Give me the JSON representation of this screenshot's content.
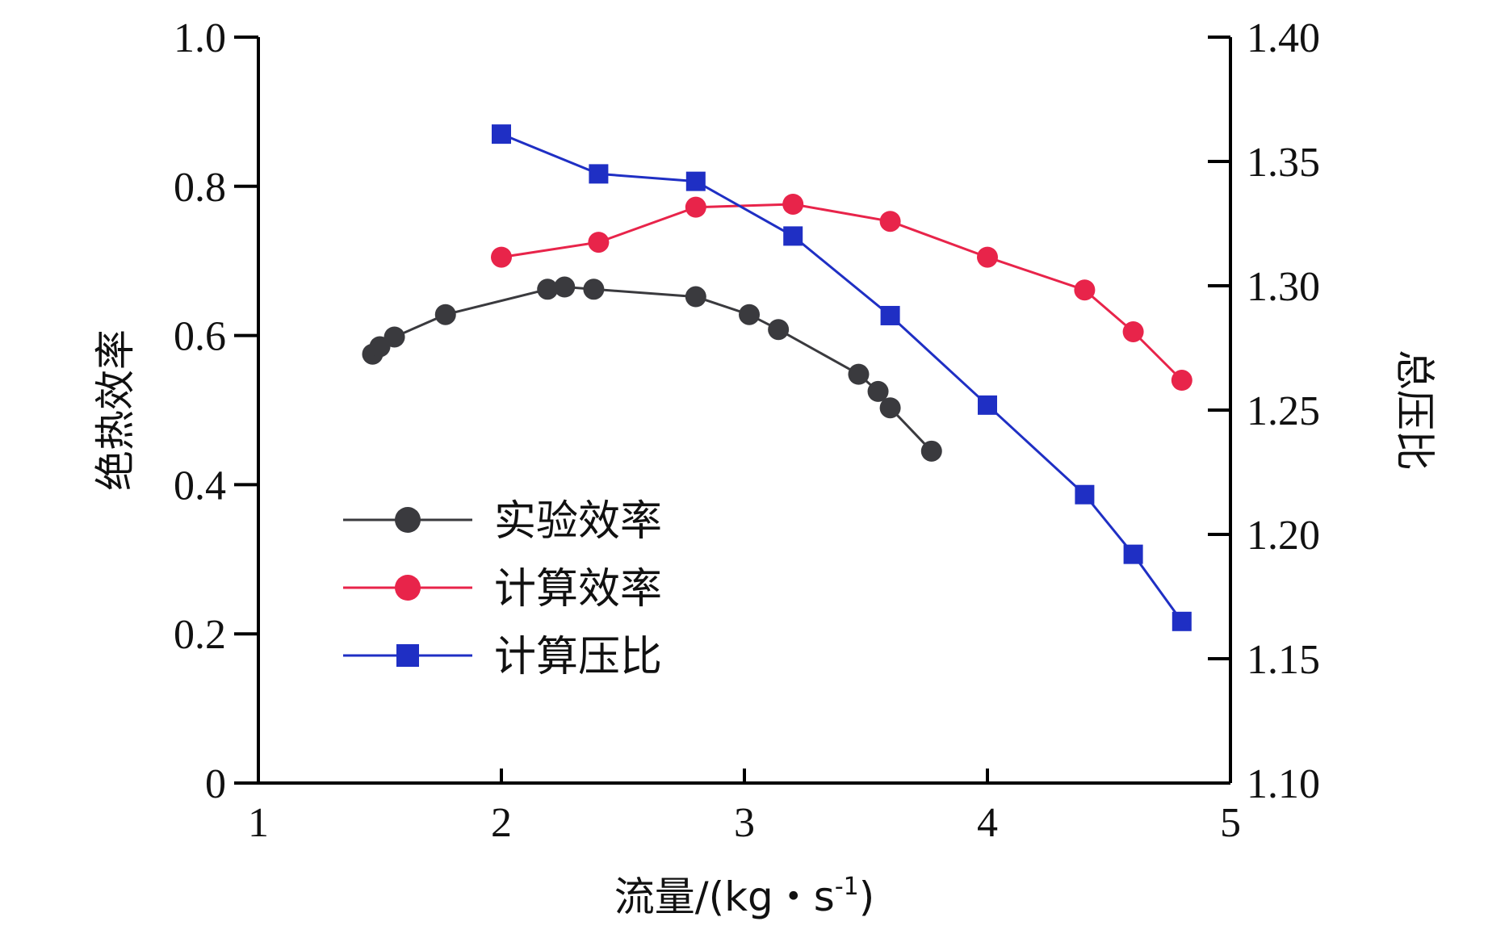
{
  "chart_data": {
    "type": "line",
    "title": "",
    "xlabel": "流量/(kg・s-1)",
    "xlabel_parts": {
      "main": "流量/(kg・s",
      "superscript": "-1",
      "close": ")"
    },
    "ylabel_left": "绝热效率",
    "ylabel_right": "总压比",
    "xlim": [
      1,
      5
    ],
    "ylim_left": [
      0,
      1.0
    ],
    "ylim_right": [
      1.1,
      1.4
    ],
    "x_ticks": [
      "1",
      "2",
      "3",
      "4",
      "5"
    ],
    "x_tick_values": [
      1,
      2,
      3,
      4,
      5
    ],
    "y_left_ticks": [
      "0",
      "0.2",
      "0.4",
      "0.6",
      "0.8",
      "1.0"
    ],
    "y_left_tick_values": [
      0,
      0.2,
      0.4,
      0.6,
      0.8,
      1.0
    ],
    "y_right_ticks": [
      "1.10",
      "1.15",
      "1.20",
      "1.25",
      "1.30",
      "1.35",
      "1.40"
    ],
    "y_right_tick_values": [
      1.1,
      1.15,
      1.2,
      1.25,
      1.3,
      1.35,
      1.4
    ],
    "legend_position": "left-middle",
    "series": [
      {
        "name": "实验效率",
        "axis": "left",
        "color": "#3a3a3e",
        "marker": "circle",
        "x": [
          1.47,
          1.5,
          1.56,
          1.77,
          2.19,
          2.26,
          2.38,
          2.8,
          3.02,
          3.14,
          3.47,
          3.55,
          3.6,
          3.77
        ],
        "y": [
          0.575,
          0.585,
          0.598,
          0.628,
          0.662,
          0.665,
          0.662,
          0.652,
          0.628,
          0.608,
          0.548,
          0.525,
          0.503,
          0.445
        ]
      },
      {
        "name": "计算效率",
        "axis": "left",
        "color": "#e8244a",
        "marker": "circle",
        "x": [
          2.0,
          2.4,
          2.8,
          3.2,
          3.6,
          4.0,
          4.4,
          4.6,
          4.8
        ],
        "y": [
          0.705,
          0.725,
          0.772,
          0.776,
          0.753,
          0.705,
          0.661,
          0.605,
          0.54
        ]
      },
      {
        "name": "计算压比",
        "axis": "right",
        "color": "#1f2fc4",
        "marker": "square",
        "x": [
          2.0,
          2.4,
          2.8,
          3.2,
          3.6,
          4.0,
          4.4,
          4.6,
          4.8
        ],
        "y": [
          1.361,
          1.345,
          1.342,
          1.32,
          1.288,
          1.252,
          1.216,
          1.192,
          1.165
        ]
      }
    ]
  }
}
